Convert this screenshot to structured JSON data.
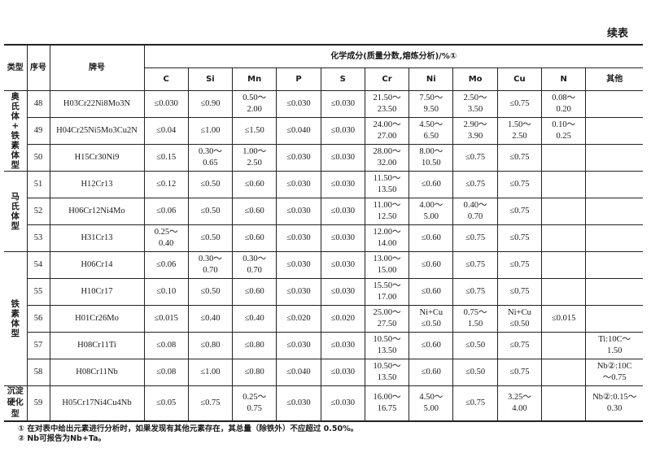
{
  "continued_label": "续表",
  "headers": {
    "type": "类型",
    "seq": "序号",
    "grade": "牌号",
    "composition": "化学成分(质量分数,熔炼分析)/%①",
    "elements": [
      "C",
      "Si",
      "Mn",
      "P",
      "S",
      "Cr",
      "Ni",
      "Mo",
      "Cu",
      "N",
      "其他"
    ]
  },
  "groups": [
    {
      "type": "奥氏体+铁素体型",
      "vertical": true,
      "rows": [
        {
          "seq": "48",
          "grade": "H03Cr22Ni8Mo3N",
          "values": [
            "≤0.030",
            "≤0.90",
            "0.50～\n2.00",
            "≤0.030",
            "≤0.030",
            "21.50～\n23.50",
            "7.50～\n9.50",
            "2.50～\n3.50",
            "≤0.75",
            "0.08～\n0.20",
            ""
          ]
        },
        {
          "seq": "49",
          "grade": "H04Cr25Ni5Mo3Cu2N",
          "values": [
            "≤0.04",
            "≤1.00",
            "≤1.50",
            "≤0.040",
            "≤0.030",
            "24.00～\n27.00",
            "4.50～\n6.50",
            "2.90～\n3.90",
            "1.50～\n2.50",
            "0.10～\n0.25",
            ""
          ]
        },
        {
          "seq": "50",
          "grade": "H15Cr30Ni9",
          "values": [
            "≤0.15",
            "0.30～\n0.65",
            "1.00～\n2.50",
            "≤0.030",
            "≤0.030",
            "28.00～\n32.00",
            "8.00～\n10.50",
            "≤0.75",
            "≤0.75",
            "",
            ""
          ]
        }
      ]
    },
    {
      "type": "马氏体型",
      "vertical": true,
      "rows": [
        {
          "seq": "51",
          "grade": "H12Cr13",
          "values": [
            "≤0.12",
            "≤0.50",
            "≤0.60",
            "≤0.030",
            "≤0.030",
            "11.50～\n13.50",
            "≤0.60",
            "≤0.75",
            "≤0.75",
            "",
            ""
          ]
        },
        {
          "seq": "52",
          "grade": "H06Cr12Ni4Mo",
          "values": [
            "≤0.06",
            "≤0.50",
            "≤0.60",
            "≤0.030",
            "≤0.030",
            "11.00～\n12.50",
            "4.00～\n5.00",
            "0.40～\n0.70",
            "≤0.75",
            "",
            ""
          ]
        },
        {
          "seq": "53",
          "grade": "H31Cr13",
          "values": [
            "0.25～\n0.40",
            "≤0.50",
            "≤0.60",
            "≤0.030",
            "≤0.030",
            "12.00～\n14.00",
            "≤0.60",
            "≤0.75",
            "≤0.75",
            "",
            ""
          ]
        }
      ]
    },
    {
      "type": "铁素体型",
      "vertical": true,
      "rows": [
        {
          "seq": "54",
          "grade": "H06Cr14",
          "values": [
            "≤0.06",
            "0.30～\n0.70",
            "0.30～\n0.70",
            "≤0.030",
            "≤0.030",
            "13.00～\n15.00",
            "≤0.60",
            "≤0.75",
            "≤0.75",
            "",
            ""
          ]
        },
        {
          "seq": "55",
          "grade": "H10Cr17",
          "values": [
            "≤0.10",
            "≤0.50",
            "≤0.60",
            "≤0.030",
            "≤0.030",
            "15.50～\n17.00",
            "≤0.60",
            "≤0.75",
            "≤0.75",
            "",
            ""
          ]
        },
        {
          "seq": "56",
          "grade": "H01Cr26Mo",
          "values": [
            "≤0.015",
            "≤0.40",
            "≤0.40",
            "≤0.020",
            "≤0.020",
            "25.00～\n27.50",
            "Ni+Cu\n≤0.50",
            "0.75～\n1.50",
            "Ni+Cu\n≤0.50",
            "≤0.015",
            ""
          ]
        },
        {
          "seq": "57",
          "grade": "H08Cr11Ti",
          "values": [
            "≤0.08",
            "≤0.80",
            "≤0.80",
            "≤0.030",
            "≤0.030",
            "10.50～\n13.50",
            "≤0.60",
            "≤0.50",
            "≤0.75",
            "",
            "Ti:10C～\n1.50"
          ]
        },
        {
          "seq": "58",
          "grade": "H08Cr11Nb",
          "values": [
            "≤0.08",
            "≤1.00",
            "≤0.80",
            "≤0.040",
            "≤0.030",
            "10.50～\n13.50",
            "≤0.60",
            "≤0.50",
            "≤0.75",
            "",
            "Nb②:10C\n～0.75"
          ]
        }
      ]
    },
    {
      "type": "沉淀\n硬化型",
      "vertical": false,
      "rows": [
        {
          "seq": "59",
          "grade": "H05Cr17Ni4Cu4Nb",
          "values": [
            "≤0.05",
            "≤0.75",
            "0.25～\n0.75",
            "≤0.030",
            "≤0.030",
            "16.00～\n16.75",
            "4.50～\n5.00",
            "≤0.75",
            "3.25～\n4.00",
            "",
            "Nb②:0.15～\n0.30"
          ]
        }
      ]
    }
  ],
  "footnotes": [
    "① 在对表中给出元素进行分析时，如果发现有其他元素存在，其总量（除铁外）不应超过 0.50%。",
    "② Nb可报告为Nb+Ta。"
  ]
}
